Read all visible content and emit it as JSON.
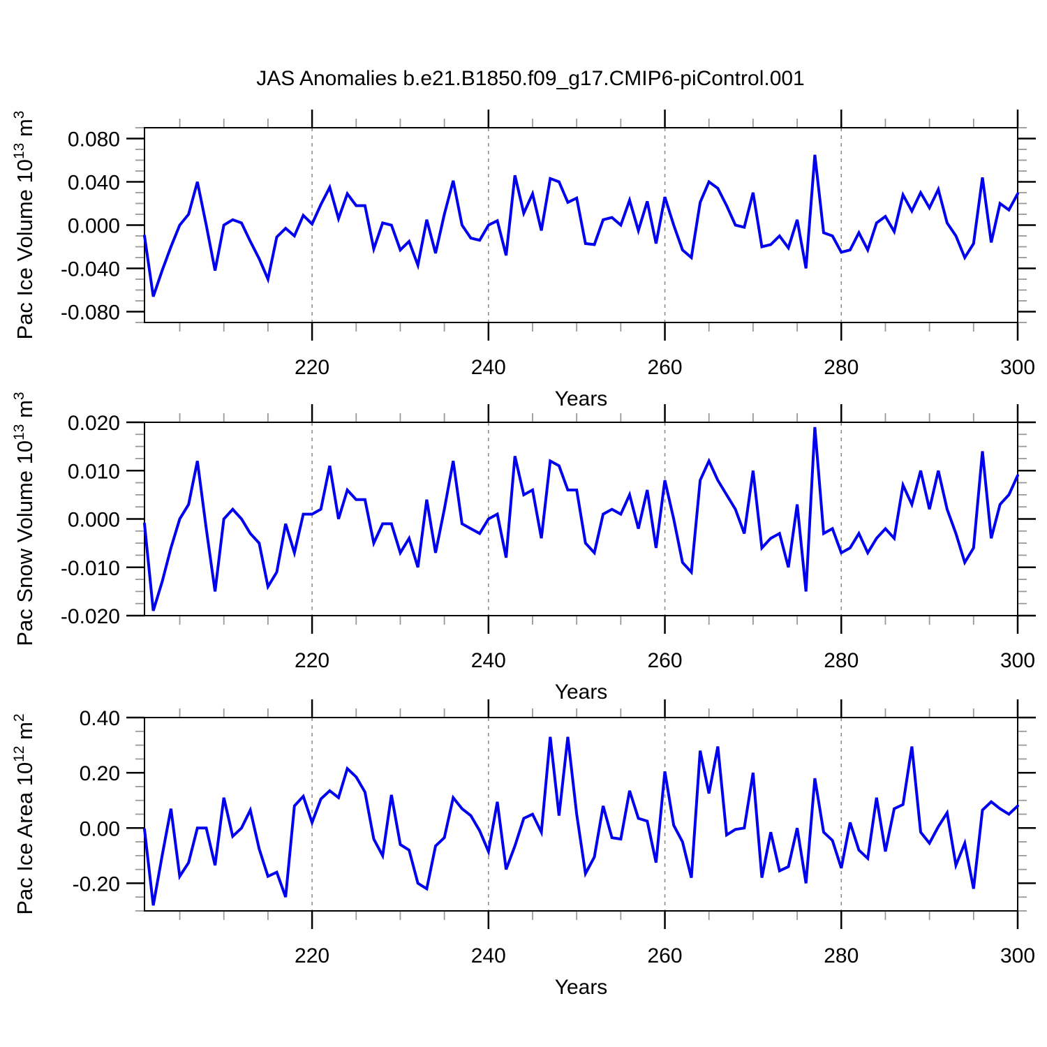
{
  "title": "JAS Anomalies b.e21.B1850.f09_g17.CMIP6-piControl.001",
  "colors": {
    "line": "#0000ee",
    "frame": "#000000",
    "grid": "#888888",
    "major_tick": "#000000",
    "minor_tick": "#999999",
    "text": "#000000"
  },
  "chart_data": [
    {
      "type": "line",
      "id": "pac-ice-volume",
      "ylabel": "Pac Ice Volume 10^13 m^3",
      "xlabel": "Years",
      "x_range": [
        201,
        300
      ],
      "x_step": 1,
      "ylim": [
        -0.09,
        0.09
      ],
      "yticks": [
        0.08,
        0.04,
        0.0,
        -0.04,
        -0.08
      ],
      "ytick_labels": [
        "0.080",
        "0.040",
        "0.000",
        "-0.040",
        "-0.080"
      ],
      "y_minor_step": 0.01,
      "xticks": [
        220,
        240,
        260,
        280,
        300
      ],
      "xtick_labels": [
        "220",
        "240",
        "260",
        "280",
        "300"
      ],
      "x_minor_step": 5,
      "grid_x": [
        220,
        240,
        260,
        280
      ],
      "values": [
        -0.01,
        -0.066,
        -0.042,
        -0.02,
        0.0,
        0.01,
        0.04,
        0.0,
        -0.042,
        0.0,
        0.005,
        0.002,
        -0.015,
        -0.031,
        -0.05,
        -0.011,
        -0.003,
        -0.01,
        0.009,
        0.001,
        0.019,
        0.035,
        0.006,
        0.029,
        0.018,
        0.018,
        -0.022,
        0.002,
        0.0,
        -0.023,
        -0.015,
        -0.037,
        0.005,
        -0.026,
        0.01,
        0.041,
        0.0,
        -0.012,
        -0.014,
        0.0,
        0.004,
        -0.028,
        0.046,
        0.011,
        0.029,
        -0.005,
        0.043,
        0.04,
        0.021,
        0.025,
        -0.017,
        -0.018,
        0.005,
        0.007,
        0.0,
        0.023,
        -0.005,
        0.022,
        -0.017,
        0.026,
        0.0,
        -0.023,
        -0.03,
        0.021,
        0.04,
        0.034,
        0.018,
        0.0,
        -0.002,
        0.03,
        -0.02,
        -0.018,
        -0.01,
        -0.021,
        0.005,
        -0.04,
        0.065,
        -0.007,
        -0.01,
        -0.025,
        -0.023,
        -0.007,
        -0.023,
        0.002,
        0.008,
        -0.006,
        0.028,
        0.013,
        0.03,
        0.016,
        0.033,
        0.002,
        -0.01,
        -0.03,
        -0.017,
        0.044,
        -0.016,
        0.02,
        0.014,
        0.029
      ]
    },
    {
      "type": "line",
      "id": "pac-snow-volume",
      "ylabel": "Pac Snow Volume 10^13 m^3",
      "xlabel": "Years",
      "x_range": [
        201,
        300
      ],
      "x_step": 1,
      "ylim": [
        -0.02,
        0.02
      ],
      "yticks": [
        0.02,
        0.01,
        0.0,
        -0.01,
        -0.02
      ],
      "ytick_labels": [
        "0.020",
        "0.010",
        "0.000",
        "-0.010",
        "-0.020"
      ],
      "y_minor_step": 0.0025,
      "xticks": [
        220,
        240,
        260,
        280,
        300
      ],
      "xtick_labels": [
        "220",
        "240",
        "260",
        "280",
        "300"
      ],
      "x_minor_step": 5,
      "grid_x": [
        220,
        240,
        260,
        280
      ],
      "values": [
        -0.001,
        -0.019,
        -0.013,
        -0.006,
        0.0,
        0.003,
        0.012,
        -0.002,
        -0.015,
        0.0,
        0.002,
        0.0,
        -0.003,
        -0.005,
        -0.014,
        -0.011,
        -0.001,
        -0.007,
        0.001,
        0.001,
        0.002,
        0.011,
        0.0,
        0.006,
        0.004,
        0.004,
        -0.005,
        -0.001,
        -0.001,
        -0.007,
        -0.004,
        -0.01,
        0.004,
        -0.007,
        0.002,
        0.012,
        -0.001,
        -0.002,
        -0.003,
        0.0,
        0.001,
        -0.008,
        0.013,
        0.005,
        0.006,
        -0.004,
        0.012,
        0.011,
        0.006,
        0.006,
        -0.005,
        -0.007,
        0.001,
        0.002,
        0.001,
        0.005,
        -0.002,
        0.006,
        -0.006,
        0.008,
        0.0,
        -0.009,
        -0.011,
        0.008,
        0.012,
        0.008,
        0.005,
        0.002,
        -0.003,
        0.01,
        -0.006,
        -0.004,
        -0.003,
        -0.01,
        0.003,
        -0.015,
        0.019,
        -0.003,
        -0.002,
        -0.007,
        -0.006,
        -0.003,
        -0.007,
        -0.004,
        -0.002,
        -0.004,
        0.007,
        0.003,
        0.01,
        0.002,
        0.01,
        0.002,
        -0.003,
        -0.009,
        -0.006,
        0.014,
        -0.004,
        0.003,
        0.005,
        0.009
      ]
    },
    {
      "type": "line",
      "id": "pac-ice-area",
      "ylabel": "Pac Ice Area 10^12 m^2",
      "xlabel": "Years",
      "x_range": [
        201,
        300
      ],
      "x_step": 1,
      "ylim": [
        -0.3,
        0.4
      ],
      "yticks": [
        0.4,
        0.2,
        0.0,
        -0.2
      ],
      "ytick_labels": [
        "0.40",
        "0.20",
        "0.00",
        "-0.20"
      ],
      "y_minor_step": 0.05,
      "xticks": [
        220,
        240,
        260,
        280,
        300
      ],
      "xtick_labels": [
        "220",
        "240",
        "260",
        "280",
        "300"
      ],
      "x_minor_step": 5,
      "grid_x": [
        220,
        240,
        260,
        280
      ],
      "values": [
        -0.005,
        -0.28,
        -0.1,
        0.07,
        -0.175,
        -0.125,
        0.0,
        0.0,
        -0.135,
        0.11,
        -0.03,
        0.0,
        0.065,
        -0.075,
        -0.175,
        -0.16,
        -0.25,
        0.08,
        0.115,
        0.02,
        0.105,
        0.135,
        0.11,
        0.215,
        0.185,
        0.13,
        -0.04,
        -0.1,
        0.12,
        -0.06,
        -0.08,
        -0.2,
        -0.22,
        -0.065,
        -0.035,
        0.11,
        0.07,
        0.045,
        -0.01,
        -0.085,
        0.095,
        -0.15,
        -0.065,
        0.035,
        0.05,
        -0.015,
        0.33,
        0.045,
        0.33,
        0.05,
        -0.165,
        -0.105,
        0.08,
        -0.035,
        -0.04,
        0.135,
        0.035,
        0.025,
        -0.125,
        0.205,
        0.01,
        -0.05,
        -0.18,
        0.28,
        0.125,
        0.295,
        -0.025,
        -0.005,
        0.0,
        0.2,
        -0.18,
        -0.015,
        -0.155,
        -0.14,
        0.0,
        -0.2,
        0.18,
        -0.015,
        -0.045,
        -0.145,
        0.02,
        -0.08,
        -0.11,
        0.11,
        -0.085,
        0.07,
        0.085,
        0.295,
        -0.015,
        -0.055,
        0.005,
        0.055,
        -0.135,
        -0.055,
        -0.22,
        0.065,
        0.095,
        0.07,
        0.05,
        0.08
      ]
    }
  ]
}
